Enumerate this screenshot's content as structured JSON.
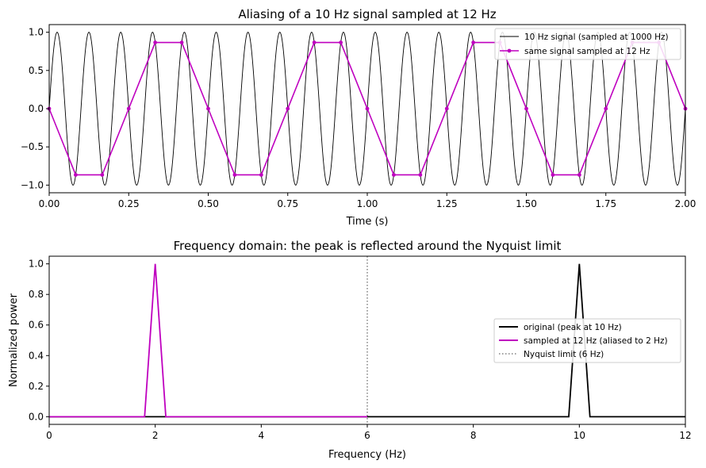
{
  "chart_data": [
    {
      "type": "line",
      "title": "Aliasing of a 10 Hz signal sampled at 12 Hz",
      "xlabel": "Time (s)",
      "ylabel": "",
      "xlim": [
        0,
        2
      ],
      "ylim": [
        -1.1,
        1.1
      ],
      "xticks": [
        "0.00",
        "0.25",
        "0.50",
        "0.75",
        "1.00",
        "1.25",
        "1.50",
        "1.75",
        "2.00"
      ],
      "yticks": [
        "1.0",
        "0.5",
        "0.0",
        "−0.5",
        "−1.0"
      ],
      "grid": false,
      "legend_position": "top-right",
      "series": [
        {
          "name": "10 Hz signal (sampled at 1000 Hz)",
          "color": "#000000",
          "function": "sin(2*pi*10*t)",
          "sample_rate_hz": 1000,
          "marker": "none"
        },
        {
          "name": "same signal sampled at 12 Hz",
          "color": "#bf00bf",
          "marker": "dot",
          "x": [
            0,
            0.0833,
            0.1667,
            0.25,
            0.3333,
            0.4167,
            0.5,
            0.5833,
            0.6667,
            0.75,
            0.8333,
            0.9167,
            1.0,
            1.0833,
            1.1667,
            1.25,
            1.3333,
            1.4167,
            1.5,
            1.5833,
            1.6667,
            1.75,
            1.8333,
            1.9167,
            2.0
          ],
          "y": [
            0,
            -0.866,
            -0.866,
            0,
            0.866,
            0.866,
            0,
            -0.866,
            -0.866,
            0,
            0.866,
            0.866,
            0,
            -0.866,
            -0.866,
            0,
            0.866,
            0.866,
            0,
            -0.866,
            -0.866,
            0,
            0.866,
            0.866,
            0
          ]
        }
      ]
    },
    {
      "type": "line",
      "title": "Frequency domain: the peak is reflected around the Nyquist limit",
      "xlabel": "Frequency (Hz)",
      "ylabel": "Normalized power",
      "xlim": [
        0,
        12
      ],
      "ylim": [
        -0.05,
        1.05
      ],
      "xticks": [
        "0",
        "2",
        "4",
        "6",
        "8",
        "10",
        "12"
      ],
      "yticks": [
        "1.0",
        "0.8",
        "0.6",
        "0.4",
        "0.2",
        "0.0"
      ],
      "grid": false,
      "legend_position": "center-right",
      "series": [
        {
          "name": "original (peak at 10 Hz)",
          "color": "#000000",
          "x": [
            0,
            9.8,
            10.0,
            10.2,
            12
          ],
          "y": [
            0,
            0,
            1.0,
            0,
            0
          ]
        },
        {
          "name": "sampled at 12 Hz (aliased to 2 Hz)",
          "color": "#bf00bf",
          "x": [
            0,
            1.8,
            2.0,
            2.2,
            6
          ],
          "y": [
            0,
            0,
            1.0,
            0,
            0
          ]
        }
      ],
      "vline": {
        "name": "Nyquist limit (6 Hz)",
        "x": 6,
        "color": "#808080",
        "style": "dotted"
      }
    }
  ]
}
